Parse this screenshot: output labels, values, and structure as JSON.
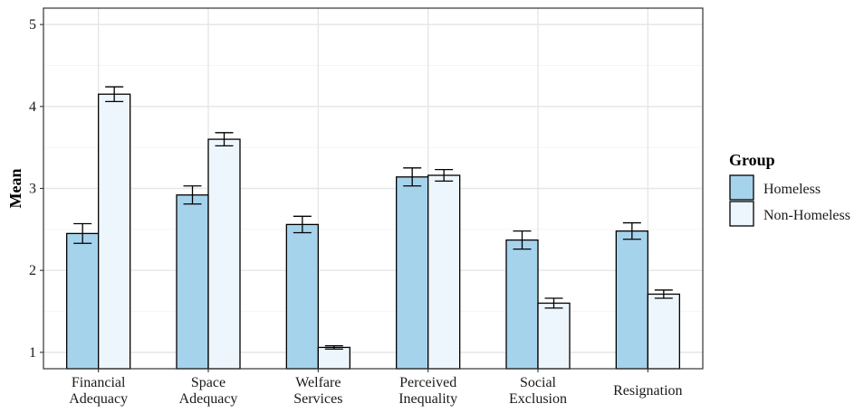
{
  "chart_data": {
    "type": "bar",
    "ylabel": "Mean",
    "xlabel": "",
    "ylim": [
      0.8,
      5.2
    ],
    "yticks": [
      1,
      2,
      3,
      4,
      5
    ],
    "grid": true,
    "legend_position": "right",
    "legend_title": "Group",
    "categories": [
      [
        "Financial",
        "Adequacy"
      ],
      [
        "Space",
        "Adequacy"
      ],
      [
        "Welfare",
        "Services"
      ],
      [
        "Perceived",
        "Inequality"
      ],
      [
        "Social",
        "Exclusion"
      ],
      [
        "Resignation"
      ]
    ],
    "series": [
      {
        "name": "Homeless",
        "color": "#a6d3ec",
        "values": [
          2.45,
          2.92,
          2.56,
          3.14,
          2.37,
          2.48
        ],
        "err_low": [
          2.33,
          2.81,
          2.46,
          3.03,
          2.26,
          2.38
        ],
        "err_high": [
          2.57,
          3.03,
          2.66,
          3.25,
          2.48,
          2.58
        ]
      },
      {
        "name": "Non-Homeless",
        "color": "#eef6fd",
        "values": [
          4.15,
          3.6,
          1.06,
          3.16,
          1.6,
          1.71
        ],
        "err_low": [
          4.06,
          3.52,
          1.04,
          3.09,
          1.54,
          1.66
        ],
        "err_high": [
          4.24,
          3.68,
          1.08,
          3.23,
          1.66,
          1.76
        ]
      }
    ]
  }
}
